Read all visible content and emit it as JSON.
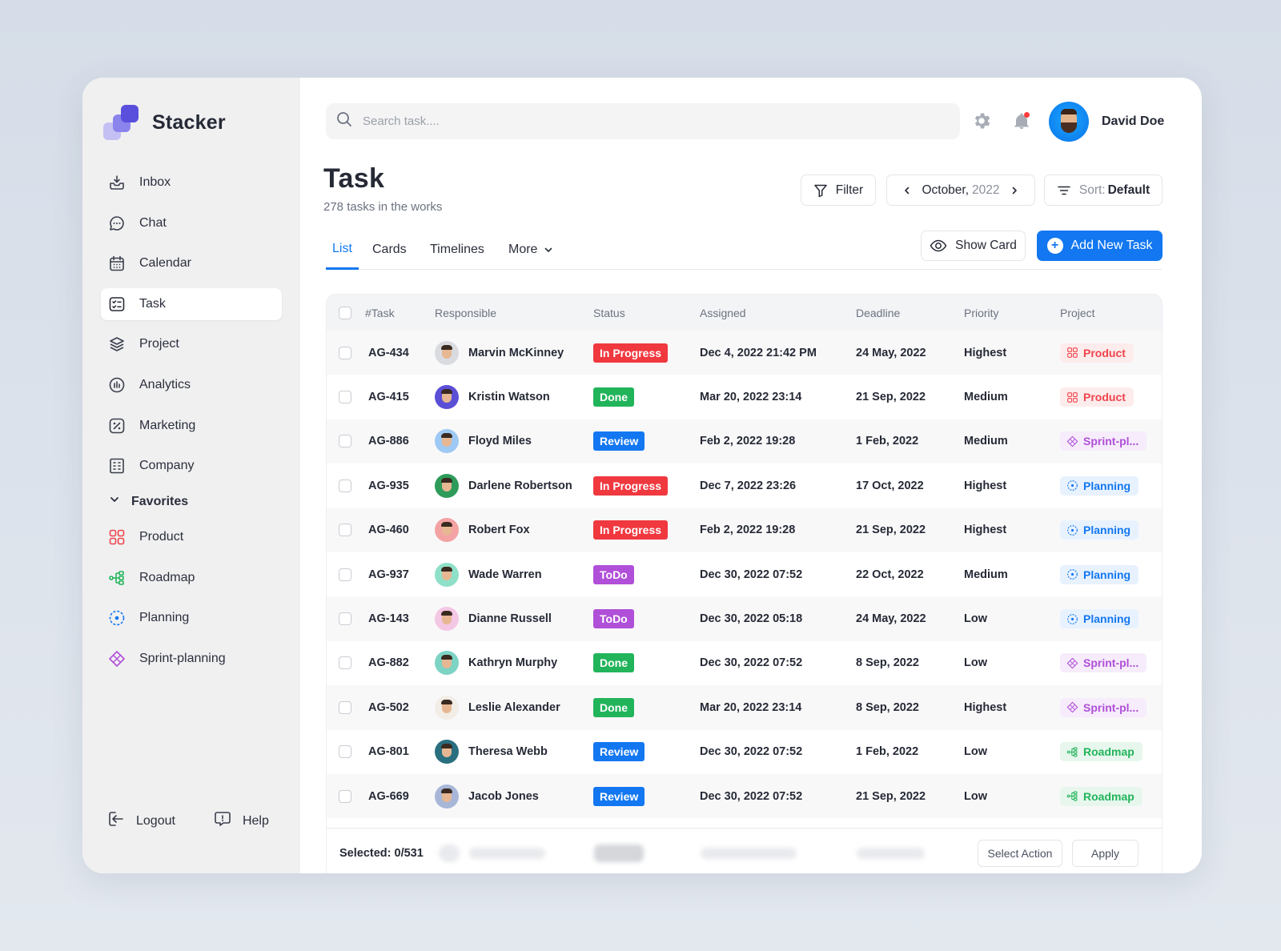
{
  "app": {
    "name": "Stacker"
  },
  "sidebar": {
    "items": [
      {
        "label": "Inbox",
        "icon": "inbox-icon"
      },
      {
        "label": "Chat",
        "icon": "chat-icon"
      },
      {
        "label": "Calendar",
        "icon": "calendar-icon"
      },
      {
        "label": "Task",
        "icon": "task-icon",
        "active": true
      },
      {
        "label": "Project",
        "icon": "layers-icon"
      },
      {
        "label": "Analytics",
        "icon": "analytics-icon"
      },
      {
        "label": "Marketing",
        "icon": "percent-icon"
      },
      {
        "label": "Company",
        "icon": "building-icon"
      }
    ],
    "favorites_label": "Favorites",
    "favorites": [
      {
        "label": "Product",
        "icon": "grid-icon",
        "color": "#f0444d"
      },
      {
        "label": "Roadmap",
        "icon": "roadmap-icon",
        "color": "#22b45b"
      },
      {
        "label": "Planning",
        "icon": "planning-icon",
        "color": "#1277f1"
      },
      {
        "label": "Sprint-planning",
        "icon": "sprint-icon",
        "color": "#b04fd8"
      }
    ],
    "logout_label": "Logout",
    "help_label": "Help"
  },
  "header": {
    "search_placeholder": "Search task....",
    "user_name": "David Doe"
  },
  "page": {
    "title": "Task",
    "subtitle": "278 tasks in the works",
    "filter_label": "Filter",
    "month": "October,",
    "year": "2022",
    "sort_label": "Sort:",
    "sort_value": "Default",
    "tabs": [
      {
        "label": "List",
        "active": true
      },
      {
        "label": "Cards"
      },
      {
        "label": "Timelines"
      },
      {
        "label": "More"
      }
    ],
    "show_card_label": "Show Card",
    "add_task_label": "Add New Task"
  },
  "table": {
    "headers": [
      "#Task",
      "Responsible",
      "Status",
      "Assigned",
      "Deadline",
      "Priority",
      "Project"
    ],
    "rows": [
      {
        "id": "AG-434",
        "name": "Marvin McKinney",
        "status": "In Progress",
        "assigned": "Dec 4, 2022 21:42 PM",
        "deadline": "24 May, 2022",
        "priority": "Highest",
        "project": "Product"
      },
      {
        "id": "AG-415",
        "name": "Kristin Watson",
        "status": "Done",
        "assigned": "Mar 20, 2022 23:14",
        "deadline": "21 Sep, 2022",
        "priority": "Medium",
        "project": "Product"
      },
      {
        "id": "AG-886",
        "name": "Floyd Miles",
        "status": "Review",
        "assigned": "Feb 2, 2022 19:28",
        "deadline": "1 Feb, 2022",
        "priority": "Medium",
        "project": "Sprint-pl..."
      },
      {
        "id": "AG-935",
        "name": "Darlene Robertson",
        "status": "In Progress",
        "assigned": "Dec 7, 2022 23:26",
        "deadline": "17 Oct, 2022",
        "priority": "Highest",
        "project": "Planning"
      },
      {
        "id": "AG-460",
        "name": "Robert Fox",
        "status": "In Progress",
        "assigned": "Feb 2, 2022 19:28",
        "deadline": "21 Sep, 2022",
        "priority": "Highest",
        "project": "Planning"
      },
      {
        "id": "AG-937",
        "name": "Wade Warren",
        "status": "ToDo",
        "assigned": "Dec 30, 2022 07:52",
        "deadline": "22 Oct, 2022",
        "priority": "Medium",
        "project": "Planning"
      },
      {
        "id": "AG-143",
        "name": "Dianne Russell",
        "status": "ToDo",
        "assigned": "Dec 30, 2022 05:18",
        "deadline": "24 May, 2022",
        "priority": "Low",
        "project": "Planning"
      },
      {
        "id": "AG-882",
        "name": "Kathryn Murphy",
        "status": "Done",
        "assigned": "Dec 30, 2022 07:52",
        "deadline": "8 Sep, 2022",
        "priority": "Low",
        "project": "Sprint-pl..."
      },
      {
        "id": "AG-502",
        "name": "Leslie Alexander",
        "status": "Done",
        "assigned": "Mar 20, 2022 23:14",
        "deadline": "8 Sep, 2022",
        "priority": "Highest",
        "project": "Sprint-pl..."
      },
      {
        "id": "AG-801",
        "name": "Theresa Webb",
        "status": "Review",
        "assigned": "Dec 30, 2022 07:52",
        "deadline": "1 Feb, 2022",
        "priority": "Low",
        "project": "Roadmap"
      },
      {
        "id": "AG-669",
        "name": "Jacob Jones",
        "status": "Review",
        "assigned": "Dec 30, 2022 07:52",
        "deadline": "21 Sep, 2022",
        "priority": "Low",
        "project": "Roadmap"
      }
    ],
    "status_colors": {
      "In Progress": "#f0383f",
      "Done": "#22b45b",
      "Review": "#1277f1",
      "ToDo": "#b04fd8"
    },
    "project_styles": {
      "Product": {
        "color": "#f0444d",
        "bg": "#fdecec",
        "icon": "grid-icon"
      },
      "Sprint-pl...": {
        "color": "#b04fd8",
        "bg": "#f6ecfb",
        "icon": "sprint-icon"
      },
      "Planning": {
        "color": "#1277f1",
        "bg": "#e8f2fe",
        "icon": "planning-icon"
      },
      "Roadmap": {
        "color": "#22b45b",
        "bg": "#e7f7ed",
        "icon": "roadmap-icon"
      }
    },
    "avatar_colors": [
      "#d9dbe0",
      "#5b4fd6",
      "#9ec9f4",
      "#2e9b5a",
      "#f3a3a3",
      "#8fe0c8",
      "#f4c7e4",
      "#7dd3c4",
      "#f2ede6",
      "#2a6f80",
      "#a8b7d8"
    ]
  },
  "footer": {
    "selected": "Selected: 0/531",
    "select_action": "Select Action",
    "apply": "Apply"
  }
}
